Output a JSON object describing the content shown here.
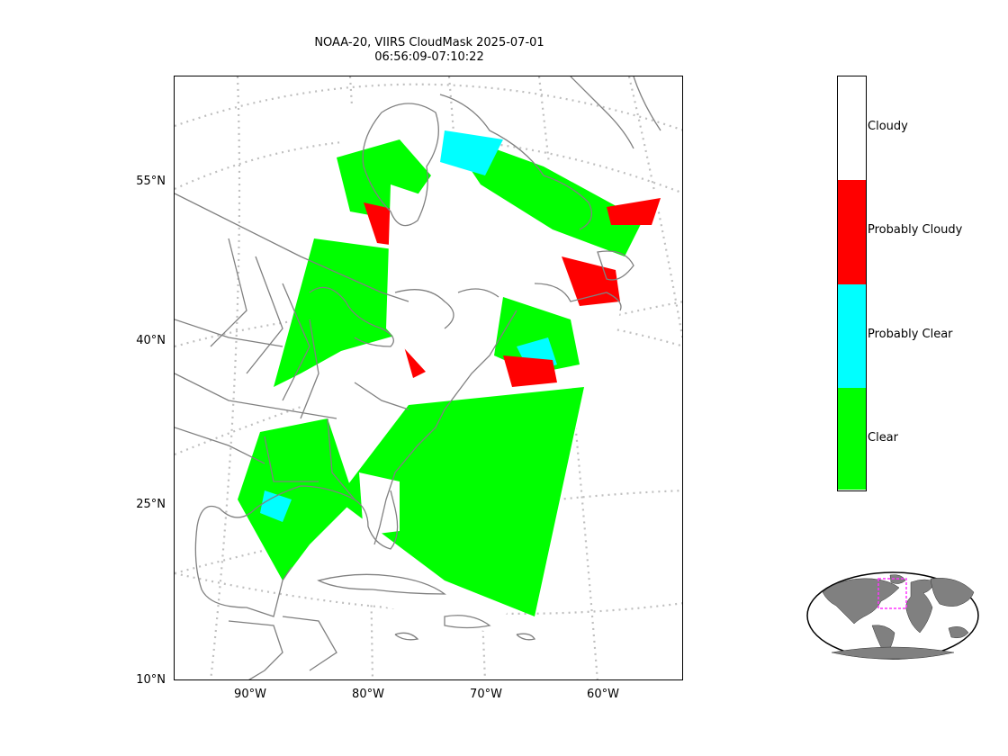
{
  "title_line1": "NOAA-20, VIIRS CloudMask 2025-07-01",
  "title_line2": "06:56:09-07:10:22",
  "latitude_labels": [
    "55°N",
    "40°N",
    "25°N",
    "10°N"
  ],
  "longitude_labels": [
    "90°W",
    "80°W",
    "70°W",
    "60°W"
  ],
  "legend": {
    "categories": [
      {
        "label": "Cloudy",
        "color": "#ffffff"
      },
      {
        "label": "Probably Cloudy",
        "color": "#ff0000"
      },
      {
        "label": "Probably Clear",
        "color": "#00ffff"
      },
      {
        "label": "Clear",
        "color": "#00ff00"
      }
    ]
  },
  "colors": {
    "coastline": "#808080",
    "gridline": "#bfbfbf",
    "inset_land": "#808080",
    "inset_box": "#ff33ff"
  }
}
